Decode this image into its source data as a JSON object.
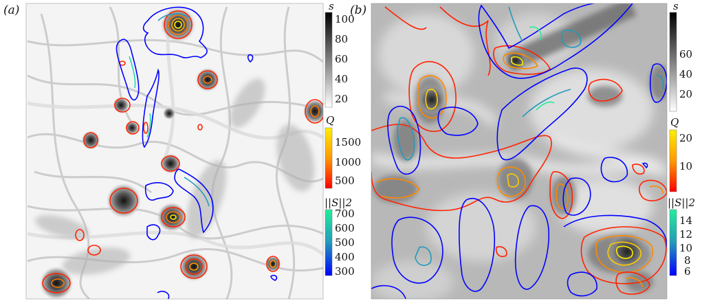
{
  "panels": [
    {
      "label": "(a)",
      "colorbars": [
        {
          "title": "s",
          "ticks": [
            "100",
            "80",
            "60",
            "40",
            "20"
          ],
          "colors": [
            "#000000",
            "#ffffff"
          ]
        },
        {
          "title": "Q",
          "ticks": [
            "1500",
            "1000",
            "500"
          ],
          "colors": [
            "#ffee00",
            "#ff9900",
            "#ff0000"
          ]
        },
        {
          "title": "||S||2",
          "ticks": [
            "700",
            "600",
            "500",
            "400",
            "300"
          ],
          "colors": [
            "#22ee99",
            "#2299bb",
            "#0000ff"
          ]
        }
      ]
    },
    {
      "label": "(b)",
      "colorbars": [
        {
          "title": "s",
          "ticks": [
            "60",
            "40",
            "20"
          ],
          "colors": [
            "#000000",
            "#ffffff"
          ]
        },
        {
          "title": "Q",
          "ticks": [
            "20",
            "10"
          ],
          "colors": [
            "#ffee00",
            "#ff9900",
            "#ff0000"
          ]
        },
        {
          "title": "||S||2",
          "ticks": [
            "14",
            "12",
            "10",
            "8",
            "6"
          ],
          "colors": [
            "#22ee99",
            "#2299bb",
            "#0000ff"
          ]
        }
      ]
    }
  ]
}
